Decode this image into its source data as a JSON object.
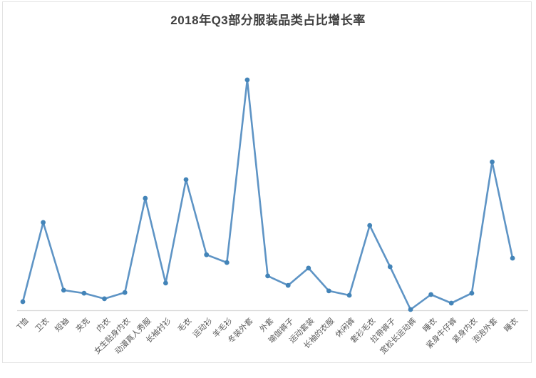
{
  "page": {
    "background": "#ffffff",
    "frame_border_color": "#e3e3e3"
  },
  "chart_data": {
    "type": "line",
    "title": "2018年Q3部分服装品类占比增长率",
    "categories": [
      "T恤",
      "卫衣",
      "短袖",
      "夹克",
      "内衣",
      "女生贴身内衣",
      "动漫真人秀服",
      "长袖衬衫",
      "毛衣",
      "运动衫",
      "羊毛衫",
      "冬装外套",
      "外套",
      "瑜伽裤子",
      "运动套装",
      "长袖的衣服",
      "休闲裤",
      "套衫毛衣",
      "拉带裤子",
      "宽松长运动裤",
      "睡衣",
      "紧身牛仔裤",
      "紧身内衣",
      "泡泡外套",
      "睡衣"
    ],
    "values": [
      3.7,
      38.1,
      8.7,
      7.4,
      5.0,
      7.7,
      48.6,
      11.8,
      56.7,
      24.1,
      20.7,
      100.0,
      14.9,
      10.8,
      18.3,
      8.4,
      6.5,
      36.8,
      18.9,
      0.3,
      6.8,
      3.1,
      7.4,
      64.4,
      22.6
    ],
    "xlabel": "",
    "ylabel": "",
    "ylim": [
      0,
      105
    ],
    "grid": false,
    "legend_position": "none",
    "y_axis_labels_visible": false,
    "x_label_rotation_deg": 45,
    "line_color": "#5E94C5",
    "marker_color": "#4384B8",
    "axis_line_color": "#D9D9D9",
    "title_color": "#3F3F3F",
    "label_color": "#595959"
  }
}
